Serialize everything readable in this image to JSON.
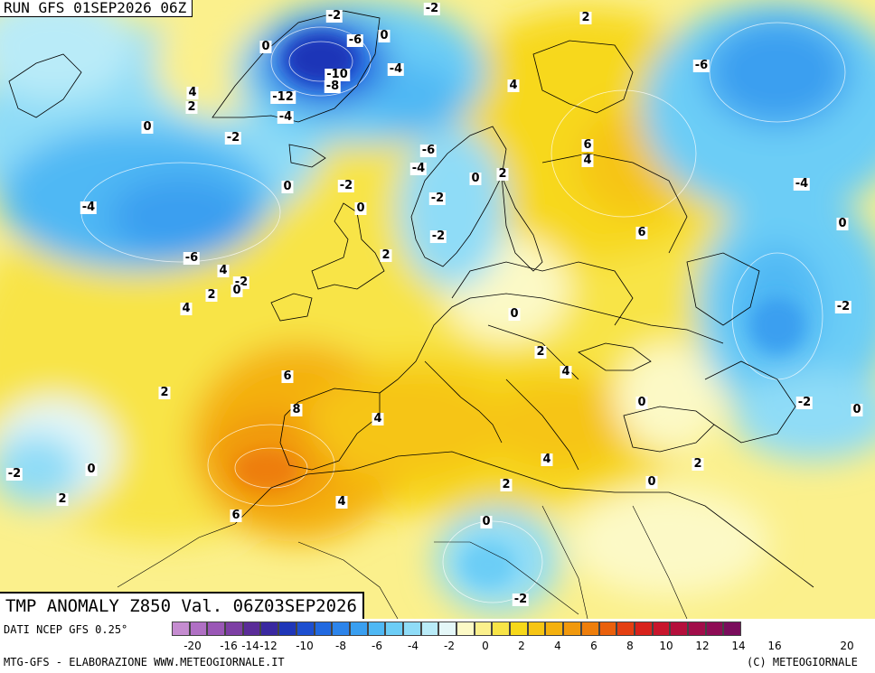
{
  "header": {
    "run": "RUN GFS 01SEP2026 06Z"
  },
  "title": {
    "text": "TMP ANOMALY Z850 Val. 06Z03SEP2026"
  },
  "footer": {
    "source": "DATI NCEP GFS 0.25°",
    "credit_left": "MTG-GFS - ELABORAZIONE WWW.METEOGIORNALE.IT",
    "credit_right": "(C) METEOGIORNALE"
  },
  "scale": {
    "colors": [
      "#c58cd0",
      "#b070c4",
      "#9a57b6",
      "#7d3fa4",
      "#5a2c98",
      "#3a28a0",
      "#1f36b8",
      "#1d4fd0",
      "#2169e0",
      "#2c84ea",
      "#3a9ff0",
      "#4fb8f4",
      "#6ccdf6",
      "#8fdcf7",
      "#b9ebf8",
      "#e4f7f8",
      "#fcf9c6",
      "#fbf08c",
      "#f8e447",
      "#f7d81a",
      "#f6c514",
      "#f4b10f",
      "#f1990d",
      "#ee7e0c",
      "#ea600c",
      "#e43f12",
      "#d8221c",
      "#c8152c",
      "#b50f3c",
      "#a10d4a",
      "#8e0c55",
      "#7a0c5c"
    ],
    "ticks": [
      "-20",
      "-16",
      "-14",
      "-12",
      "-10",
      "-8",
      "-6",
      "-4",
      "-2",
      "0",
      "2",
      "4",
      "6",
      "8",
      "10",
      "12",
      "14",
      "16",
      "20"
    ]
  },
  "map_labels": [
    "-2",
    "-2",
    "2",
    "0",
    "-6",
    "0",
    "-12",
    "-10",
    "-8",
    "-4",
    "4",
    "2",
    "0",
    "-2",
    "-4",
    "-6",
    "-4",
    "4",
    "6",
    "4",
    "-6",
    "0",
    "0",
    "-2",
    "0",
    "2",
    "-4",
    "-2",
    "-4",
    "-2",
    "-6",
    "-2",
    "0",
    "2",
    "2",
    "4",
    "6",
    "0",
    "-2",
    "4",
    "2",
    "4",
    "6",
    "8",
    "0",
    "0",
    "4",
    "-2",
    "2",
    "0",
    "2",
    "4",
    "4",
    "-2",
    "6",
    "2",
    "0",
    "-2",
    "0",
    "2",
    "0"
  ]
}
